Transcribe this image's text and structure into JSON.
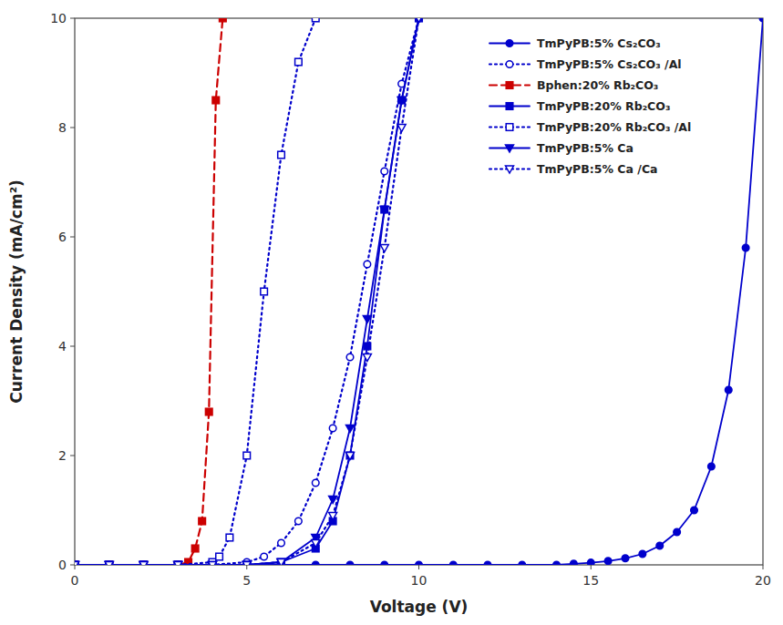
{
  "chart_data": {
    "type": "line",
    "xlabel": "Voltage (V)",
    "ylabel": "Current Density (mA/cm²)",
    "xlim": [
      0,
      20
    ],
    "ylim": [
      0,
      10
    ],
    "xticks": [
      0,
      5,
      10,
      15,
      20
    ],
    "yticks": [
      0,
      2,
      4,
      6,
      8,
      10
    ],
    "grid": false,
    "legend": "upper right",
    "series": [
      {
        "name": "TmPyPB:5% Cs₂CO₃",
        "color": "#0000cc",
        "line_style": "solid",
        "marker": "circle",
        "x": [
          0,
          1,
          2,
          3,
          4,
          5,
          6,
          7,
          8,
          9,
          10,
          11,
          12,
          13,
          14,
          14.5,
          15,
          15.5,
          16,
          16.5,
          17,
          17.5,
          18,
          18.5,
          19,
          19.5,
          20
        ],
        "values": [
          0,
          0,
          0,
          0,
          0,
          0,
          0,
          0,
          0,
          0,
          0,
          0,
          0,
          0,
          0,
          0.02,
          0.04,
          0.07,
          0.12,
          0.2,
          0.35,
          0.6,
          1.0,
          1.8,
          3.2,
          5.8,
          10
        ]
      },
      {
        "name": "TmPyPB:5% Cs₂CO₃ /Al",
        "color": "#0000cc",
        "line_style": "dotted",
        "marker": "open-circle",
        "x": [
          0,
          1,
          2,
          3,
          4,
          5,
          5.5,
          6,
          6.5,
          7,
          7.5,
          8,
          8.5,
          9,
          9.5,
          10
        ],
        "values": [
          0,
          0,
          0,
          0,
          0,
          0.05,
          0.15,
          0.4,
          0.8,
          1.5,
          2.5,
          3.8,
          5.5,
          7.2,
          8.8,
          10
        ]
      },
      {
        "name": "Bphen:20% Rb₂CO₃",
        "color": "#cc0000",
        "line_style": "dashed",
        "marker": "square",
        "x": [
          0,
          1,
          2,
          3,
          3.3,
          3.5,
          3.7,
          3.9,
          4.1,
          4.3
        ],
        "values": [
          0,
          0,
          0,
          0,
          0.05,
          0.3,
          0.8,
          2.8,
          8.5,
          10
        ]
      },
      {
        "name": "TmPyPB:20% Rb₂CO₃",
        "color": "#0000cc",
        "line_style": "solid",
        "marker": "square",
        "x": [
          0,
          1,
          2,
          3,
          4,
          5,
          6,
          7,
          7.5,
          8,
          8.5,
          9,
          9.5,
          10
        ],
        "values": [
          0,
          0,
          0,
          0,
          0,
          0,
          0.05,
          0.3,
          0.8,
          2.0,
          4.0,
          6.5,
          8.5,
          10
        ]
      },
      {
        "name": "TmPyPB:20% Rb₂CO₃ /Al",
        "color": "#0000cc",
        "line_style": "dotted",
        "marker": "open-square",
        "x": [
          0,
          1,
          2,
          3,
          4,
          4.2,
          4.5,
          5,
          5.5,
          6,
          6.5,
          7
        ],
        "values": [
          0,
          0,
          0,
          0,
          0.05,
          0.15,
          0.5,
          2.0,
          5.0,
          7.5,
          9.2,
          10
        ]
      },
      {
        "name": "TmPyPB:5% Ca",
        "color": "#0000cc",
        "line_style": "solid",
        "marker": "triangle-down",
        "x": [
          0,
          1,
          2,
          3,
          4,
          5,
          6,
          7,
          7.5,
          8,
          8.5,
          9,
          9.5,
          10
        ],
        "values": [
          0,
          0,
          0,
          0,
          0,
          0,
          0.05,
          0.5,
          1.2,
          2.5,
          4.5,
          6.5,
          8.5,
          10
        ]
      },
      {
        "name": "TmPyPB:5% Ca /Ca",
        "color": "#0000cc",
        "line_style": "dotted",
        "marker": "open-triangle-down",
        "x": [
          0,
          1,
          2,
          3,
          4,
          5,
          6,
          7,
          7.5,
          8,
          8.5,
          9,
          9.5,
          10
        ],
        "values": [
          0,
          0,
          0,
          0,
          0,
          0,
          0.05,
          0.4,
          0.9,
          2.0,
          3.8,
          5.8,
          8.0,
          10
        ]
      }
    ]
  }
}
